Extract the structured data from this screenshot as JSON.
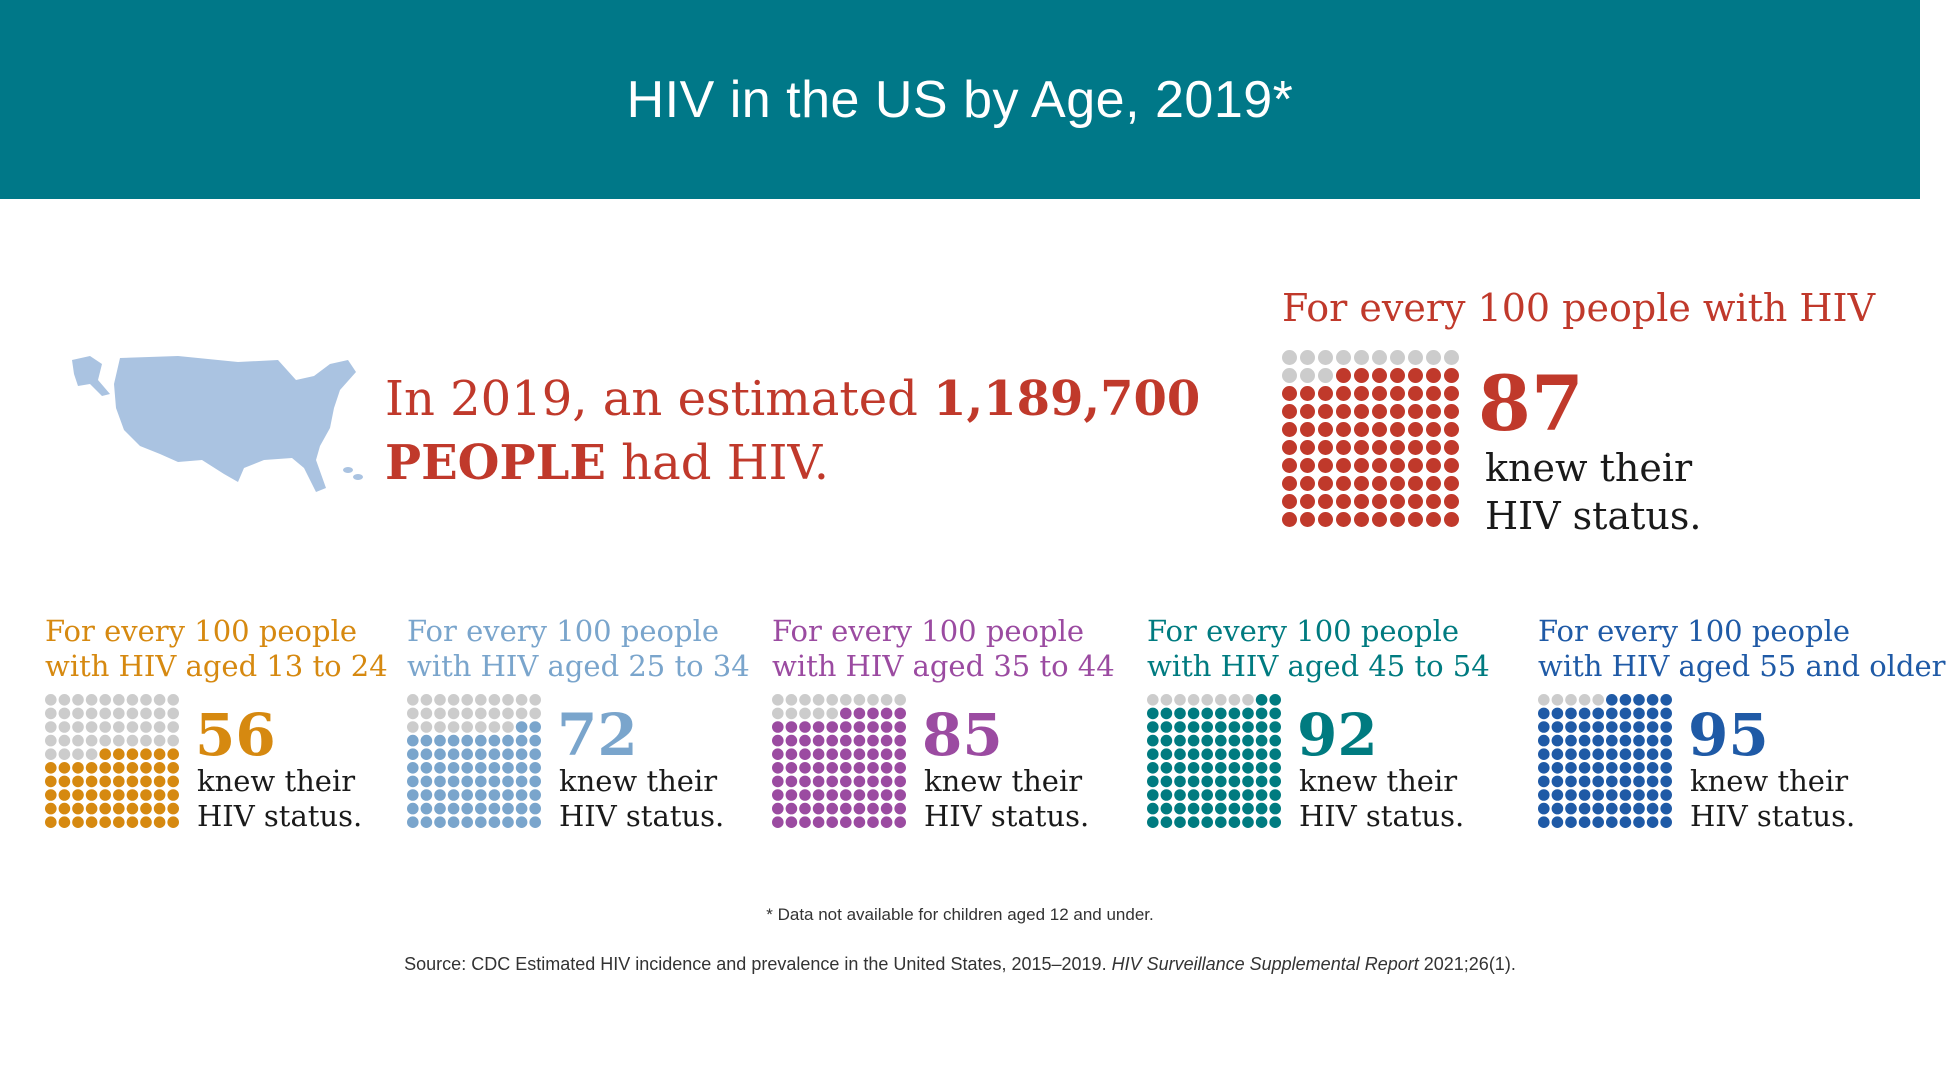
{
  "header": {
    "title": "HIV in the US by Age, 2019*"
  },
  "estimate": {
    "prefix": "In 2019, an estimated ",
    "number": "1,189,700",
    "people": "PEOPLE",
    "suffix": " had HIV."
  },
  "overall": {
    "heading": "For every 100 people with HIV",
    "value": 87,
    "value_label": "87",
    "caption_line1": "knew their",
    "caption_line2": "HIV status.",
    "color": "#c0392b",
    "empty_color": "#cccccc"
  },
  "chart_data": {
    "type": "waffle",
    "total": 100,
    "series": [
      {
        "group": "13 to 24",
        "value": 56,
        "label": "56",
        "heading_line1": "For every 100 people",
        "heading_line2": "with HIV aged 13 to 24",
        "color": "#d68910"
      },
      {
        "group": "25 to 34",
        "value": 72,
        "label": "72",
        "heading_line1": "For every 100 people",
        "heading_line2": "with HIV aged 25 to 34",
        "color": "#7aa5cc"
      },
      {
        "group": "35 to 44",
        "value": 85,
        "label": "85",
        "heading_line1": "For every 100 people",
        "heading_line2": "with HIV aged 35 to 44",
        "color": "#9b4ba1"
      },
      {
        "group": "45 to 54",
        "value": 92,
        "label": "92",
        "heading_line1": "For every 100 people",
        "heading_line2": "with HIV aged 45 to 54",
        "color": "#007b80"
      },
      {
        "group": "55 and older",
        "value": 95,
        "label": "95",
        "heading_line1": "For every 100 people",
        "heading_line2": "with HIV aged 55 and older",
        "color": "#1f5aa6"
      }
    ],
    "caption_line1": "knew their",
    "caption_line2": "HIV status."
  },
  "footnote": "* Data not available for children aged 12 and under.",
  "source": {
    "prefix": "Source: CDC Estimated HIV incidence and prevalence in the United States, 2015–2019. ",
    "journal": "HIV Surveillance Supplemental Report",
    "suffix": " 2021;26(1)."
  },
  "colors": {
    "banner": "#007888",
    "map": "#aac3e1"
  }
}
